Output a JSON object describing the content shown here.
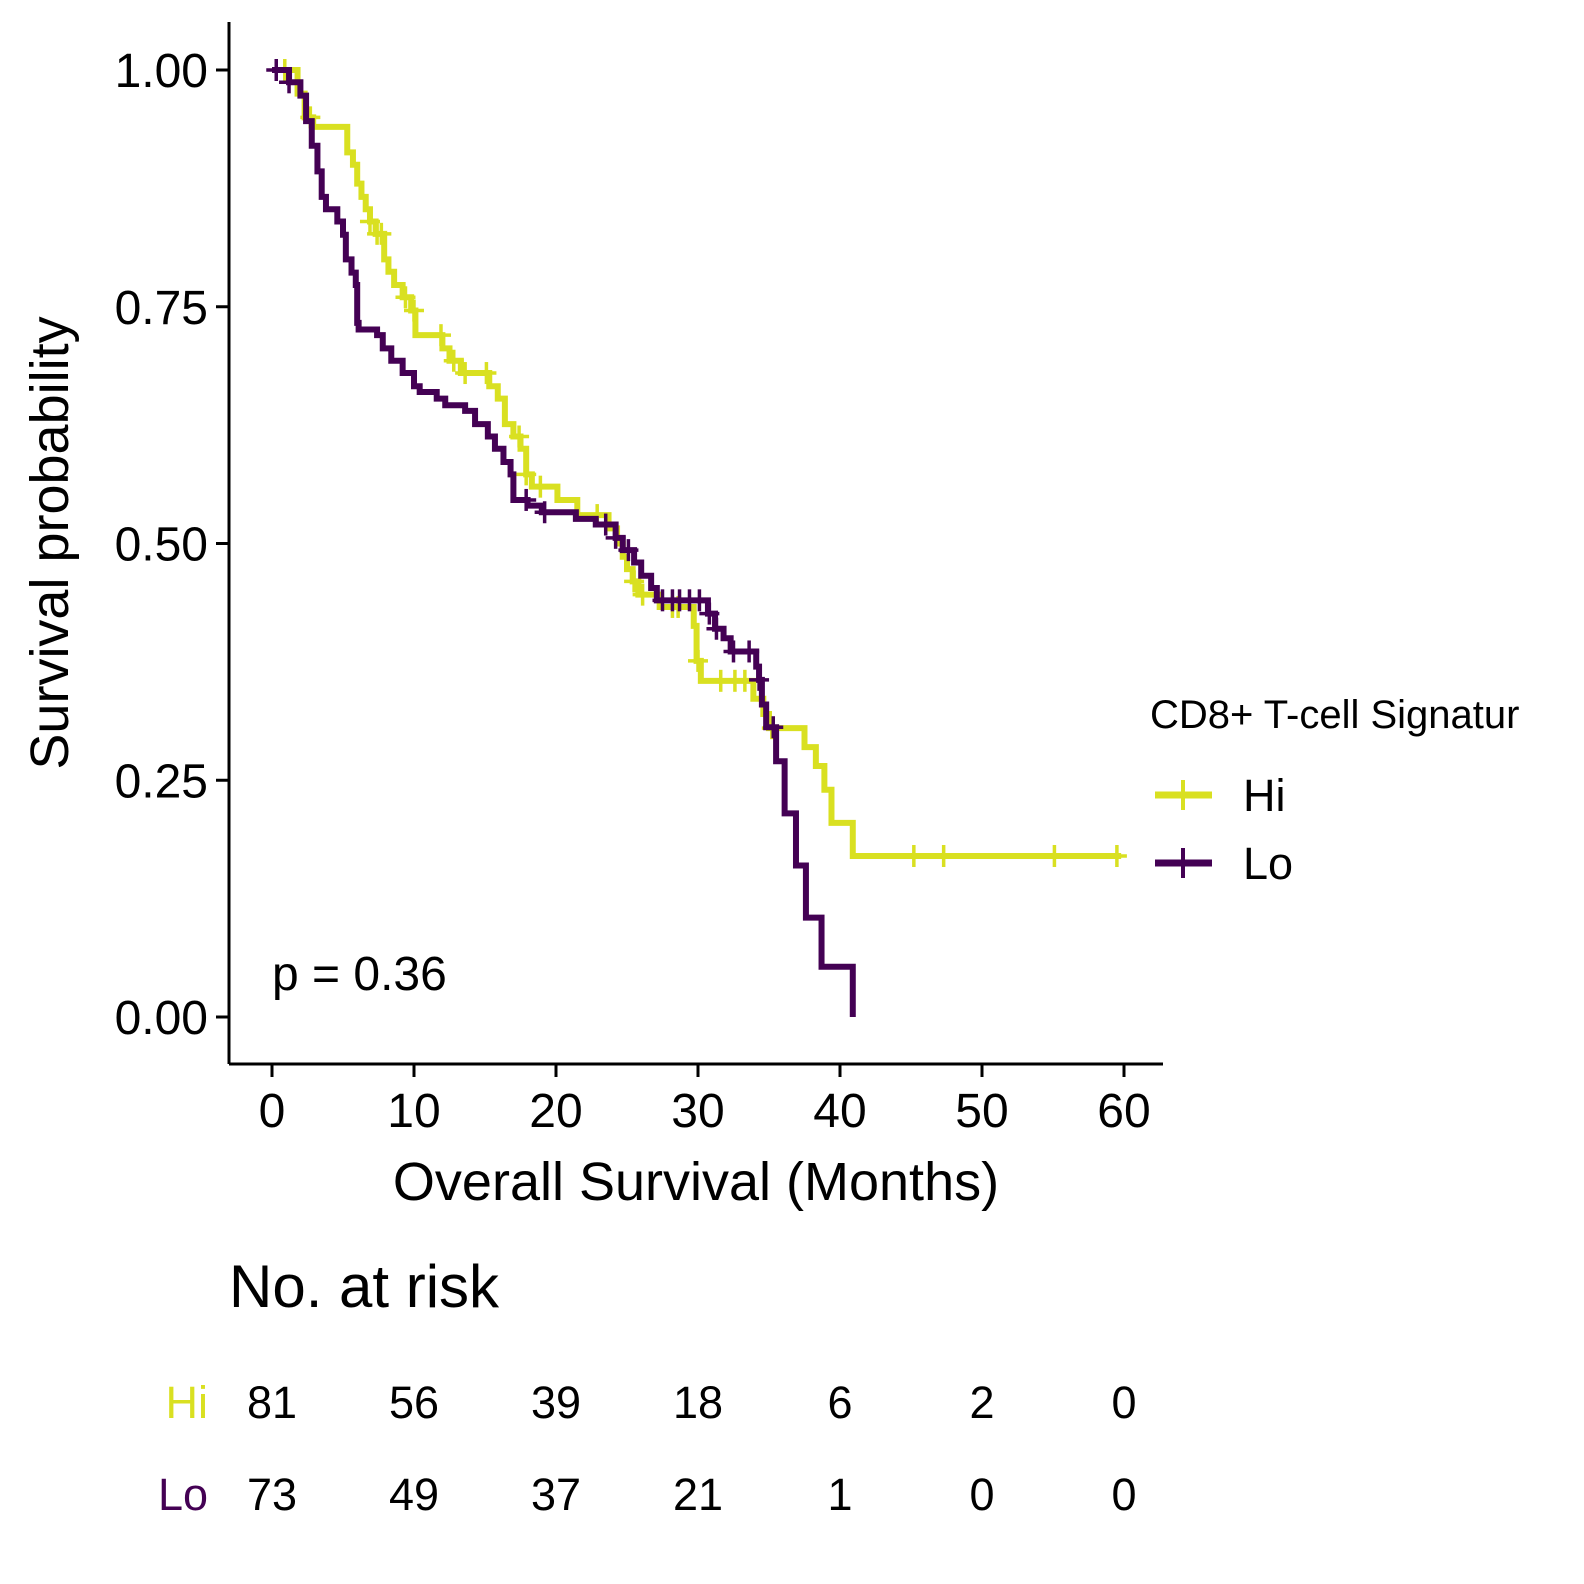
{
  "chart_data": [
    {
      "type": "line",
      "subtype": "kaplan-meier",
      "title": "",
      "xlabel": "Overall Survival (Months)",
      "ylabel": "Survival probability",
      "xlim": [
        -3,
        63
      ],
      "ylim": [
        -0.05,
        1.05
      ],
      "x_ticks": [
        "0",
        "10",
        "20",
        "30",
        "40",
        "50",
        "60"
      ],
      "y_ticks": [
        "0.00",
        "0.25",
        "0.50",
        "0.75",
        "1.00"
      ],
      "grid": false,
      "annotation": "p = 0.36",
      "legend": {
        "title": "CD8+ T-cell Signatur",
        "placement": "right"
      },
      "series": [
        {
          "name": "Hi",
          "color": "#d9e021",
          "steps": [
            [
              0,
              1.0
            ],
            [
              1.8,
              0.975
            ],
            [
              2.3,
              0.95
            ],
            [
              2.9,
              0.94
            ],
            [
              5.3,
              0.913
            ],
            [
              5.7,
              0.9
            ],
            [
              6.0,
              0.88
            ],
            [
              6.3,
              0.866
            ],
            [
              6.6,
              0.853
            ],
            [
              6.9,
              0.84
            ],
            [
              7.3,
              0.827
            ],
            [
              7.9,
              0.8
            ],
            [
              8.2,
              0.787
            ],
            [
              8.6,
              0.773
            ],
            [
              9.2,
              0.76
            ],
            [
              9.8,
              0.746
            ],
            [
              10.1,
              0.72
            ],
            [
              12.0,
              0.706
            ],
            [
              12.5,
              0.693
            ],
            [
              13.3,
              0.68
            ],
            [
              15.3,
              0.666
            ],
            [
              15.9,
              0.653
            ],
            [
              16.4,
              0.626
            ],
            [
              17.0,
              0.613
            ],
            [
              17.5,
              0.6
            ],
            [
              17.9,
              0.573
            ],
            [
              18.3,
              0.56
            ],
            [
              20.1,
              0.546
            ],
            [
              21.5,
              0.53
            ],
            [
              23.7,
              0.516
            ],
            [
              24.3,
              0.5
            ],
            [
              24.7,
              0.486
            ],
            [
              25.0,
              0.473
            ],
            [
              25.4,
              0.46
            ],
            [
              25.8,
              0.446
            ],
            [
              27.3,
              0.433
            ],
            [
              29.7,
              0.413
            ],
            [
              29.9,
              0.376
            ],
            [
              30.2,
              0.355
            ],
            [
              33.9,
              0.336
            ],
            [
              34.6,
              0.32
            ],
            [
              35.0,
              0.305
            ],
            [
              37.5,
              0.285
            ],
            [
              38.3,
              0.265
            ],
            [
              38.9,
              0.24
            ],
            [
              39.4,
              0.205
            ],
            [
              40.9,
              0.17
            ],
            [
              59.8,
              0.17
            ]
          ],
          "censor_times": [
            0.9,
            2.7,
            6.9,
            7.4,
            7.7,
            9.4,
            10.0,
            11.9,
            12.8,
            13.6,
            15.1,
            17.4,
            17.9,
            18.9,
            22.9,
            25.5,
            26.1,
            28.2,
            28.6,
            30.0,
            31.6,
            32.6,
            33.3,
            35.2,
            45.2,
            47.3,
            55.1,
            59.5
          ]
        },
        {
          "name": "Lo",
          "color": "#440154",
          "steps": [
            [
              0,
              1.0
            ],
            [
              1.2,
              0.987
            ],
            [
              2.0,
              0.973
            ],
            [
              2.4,
              0.946
            ],
            [
              2.8,
              0.92
            ],
            [
              3.2,
              0.893
            ],
            [
              3.5,
              0.866
            ],
            [
              3.8,
              0.853
            ],
            [
              4.6,
              0.84
            ],
            [
              5.0,
              0.826
            ],
            [
              5.2,
              0.8
            ],
            [
              5.6,
              0.786
            ],
            [
              5.9,
              0.773
            ],
            [
              6.0,
              0.733
            ],
            [
              6.1,
              0.726
            ],
            [
              7.4,
              0.72
            ],
            [
              7.8,
              0.706
            ],
            [
              8.4,
              0.693
            ],
            [
              9.2,
              0.68
            ],
            [
              10.0,
              0.666
            ],
            [
              10.4,
              0.66
            ],
            [
              11.6,
              0.653
            ],
            [
              12.2,
              0.646
            ],
            [
              13.6,
              0.64
            ],
            [
              14.3,
              0.626
            ],
            [
              15.2,
              0.613
            ],
            [
              15.7,
              0.6
            ],
            [
              16.3,
              0.586
            ],
            [
              16.8,
              0.573
            ],
            [
              17.0,
              0.546
            ],
            [
              18.0,
              0.54
            ],
            [
              19.0,
              0.533
            ],
            [
              21.4,
              0.526
            ],
            [
              22.8,
              0.52
            ],
            [
              24.2,
              0.506
            ],
            [
              24.7,
              0.493
            ],
            [
              25.5,
              0.48
            ],
            [
              26.0,
              0.466
            ],
            [
              26.7,
              0.453
            ],
            [
              27.1,
              0.44
            ],
            [
              30.7,
              0.426
            ],
            [
              31.2,
              0.41
            ],
            [
              31.8,
              0.4
            ],
            [
              32.3,
              0.386
            ],
            [
              34.1,
              0.37
            ],
            [
              34.3,
              0.356
            ],
            [
              34.5,
              0.33
            ],
            [
              34.8,
              0.306
            ],
            [
              35.5,
              0.27
            ],
            [
              36.1,
              0.215
            ],
            [
              36.9,
              0.16
            ],
            [
              37.6,
              0.105
            ],
            [
              38.7,
              0.053
            ],
            [
              40.9,
              0.0
            ]
          ],
          "censor_times": [
            0.3,
            1.2,
            17.9,
            19.2,
            23.5,
            24.2,
            25.1,
            27.5,
            28.2,
            28.7,
            29.4,
            30.1,
            30.8,
            31.3,
            32.5,
            33.6,
            34.3,
            35.3
          ]
        }
      ]
    },
    {
      "type": "table",
      "title": "No. at risk",
      "columns": [
        0,
        10,
        20,
        30,
        40,
        50,
        60
      ],
      "rows": [
        {
          "label": "Hi",
          "color": "#d9e021",
          "values": [
            "81",
            "56",
            "39",
            "18",
            "6",
            "2",
            "0"
          ]
        },
        {
          "label": "Lo",
          "color": "#440154",
          "values": [
            "73",
            "49",
            "37",
            "21",
            "1",
            "0",
            "0"
          ]
        }
      ]
    }
  ]
}
